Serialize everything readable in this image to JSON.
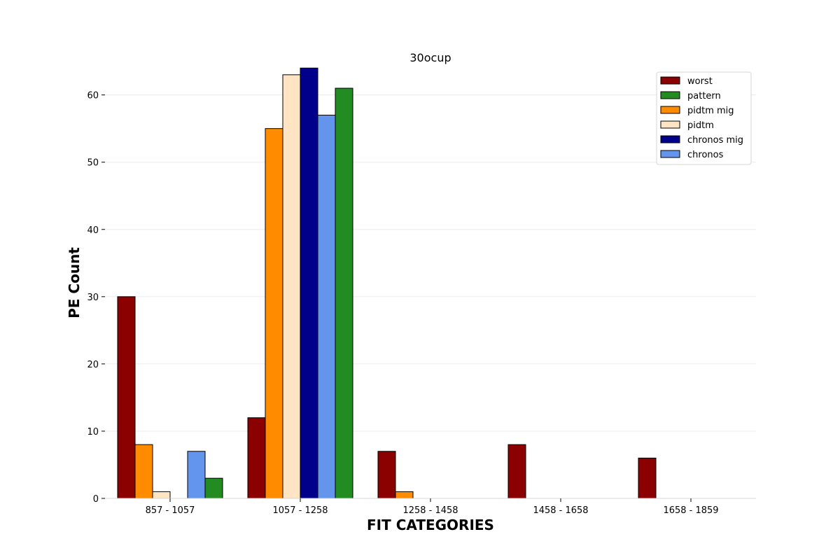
{
  "chart_data": {
    "type": "bar",
    "title": "30ocup",
    "xlabel": "FIT CATEGORIES",
    "ylabel": "PE Count",
    "categories": [
      "857 - 1057",
      "1057 - 1258",
      "1258 - 1458",
      "1458 - 1658",
      "1658 - 1859"
    ],
    "ylim": [
      0,
      66
    ],
    "yticks": [
      0,
      10,
      20,
      30,
      40,
      50,
      60
    ],
    "grid": "horizontal",
    "legend_position": "top-right",
    "series": [
      {
        "name": "worst",
        "color": "#8b0000",
        "values": [
          30,
          12,
          7,
          8,
          6
        ]
      },
      {
        "name": "pidtm mig",
        "color": "#ff8c00",
        "values": [
          8,
          55,
          1,
          0,
          0
        ]
      },
      {
        "name": "pidtm",
        "color": "#ffe4c4",
        "values": [
          1,
          63,
          0,
          0,
          0
        ]
      },
      {
        "name": "chronos mig",
        "color": "#00008b",
        "values": [
          0,
          64,
          0,
          0,
          0
        ]
      },
      {
        "name": "chronos",
        "color": "#6495ed",
        "values": [
          7,
          57,
          0,
          0,
          0
        ]
      },
      {
        "name": "pattern",
        "color": "#228b22",
        "values": [
          3,
          61,
          0,
          0,
          0
        ]
      }
    ],
    "legend_order": [
      "worst",
      "pattern",
      "pidtm mig",
      "pidtm",
      "chronos mig",
      "chronos"
    ]
  }
}
